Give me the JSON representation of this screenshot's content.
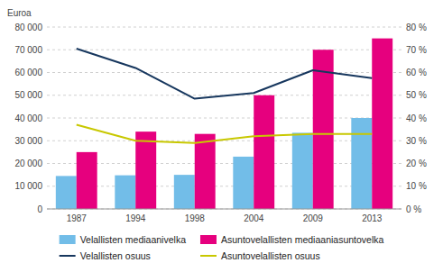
{
  "chart_data": {
    "type": "bar",
    "ylabel": "Euroa",
    "categories": [
      "1987",
      "1994",
      "1998",
      "2004",
      "2009",
      "2013"
    ],
    "series": [
      {
        "name": "Velallisten mediaanivelka",
        "type": "bar",
        "color": "#72BDE8",
        "values": [
          14500,
          14800,
          15000,
          23000,
          33500,
          40000
        ]
      },
      {
        "name": "Asuntovelallisten mediaaniasuntovelka",
        "type": "bar",
        "color": "#E6007E",
        "values": [
          25000,
          34000,
          33000,
          50000,
          70000,
          75000
        ]
      },
      {
        "name": "Velallisten osuus",
        "type": "line",
        "axis": "y2",
        "color": "#17375E",
        "values": [
          70.5,
          62,
          48.5,
          51,
          61,
          57.5
        ]
      },
      {
        "name": "Asuntovelallisten osuus",
        "type": "line",
        "axis": "y2",
        "color": "#C8C800",
        "values": [
          37,
          30,
          29,
          32,
          33,
          33
        ]
      }
    ],
    "ylim": [
      0,
      80000
    ],
    "yticks": [
      0,
      {
        "value": 10000,
        "label": "10 000"
      },
      {
        "value": 20000,
        "label": "20 000"
      },
      {
        "value": 30000,
        "label": "30 000"
      },
      {
        "value": 40000,
        "label": "40 000"
      },
      {
        "value": 50000,
        "label": "50 000"
      },
      {
        "value": 60000,
        "label": "60 000"
      },
      {
        "value": 70000,
        "label": "70 000"
      },
      {
        "value": 80000,
        "label": "80 000"
      }
    ],
    "y2lim": [
      0,
      80
    ],
    "y2ticks": [
      {
        "value": 0,
        "label": "0 %"
      },
      {
        "value": 10,
        "label": "10 %"
      },
      {
        "value": 20,
        "label": "20 %"
      },
      {
        "value": 30,
        "label": "30 %"
      },
      {
        "value": 40,
        "label": "40 %"
      },
      {
        "value": 50,
        "label": "50 %"
      },
      {
        "value": 60,
        "label": "60 %"
      },
      {
        "value": 70,
        "label": "70 %"
      },
      {
        "value": 80,
        "label": "80 %"
      }
    ],
    "grid": true,
    "legend": "bottom"
  }
}
